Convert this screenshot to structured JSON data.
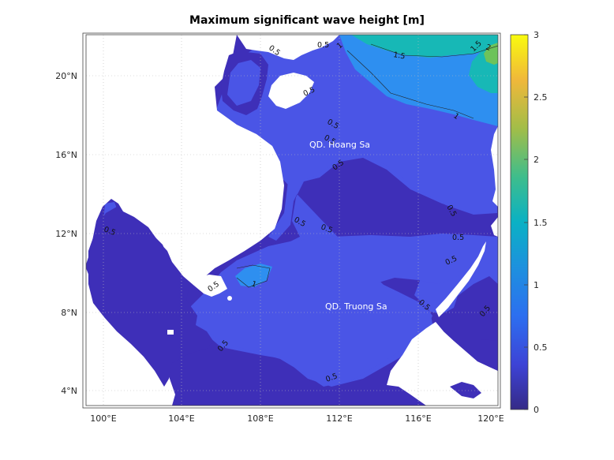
{
  "title": "Maximum significant wave height [m]",
  "map": {
    "lon_ticks": [
      "100°E",
      "104°E",
      "108°E",
      "112°E",
      "116°E",
      "120°E"
    ],
    "lat_ticks": [
      "4°N",
      "8°N",
      "12°N",
      "16°N",
      "20°N"
    ],
    "place_labels": [
      "QD. Hoang Sa",
      "QD. Truong Sa"
    ],
    "contour_labels": [
      "0.5",
      "0.5",
      "1",
      "1.5",
      "1.5",
      "2",
      "0.5",
      "0.5",
      "0.5",
      "1",
      "0.5",
      "0.5",
      "0.5",
      "0.5",
      "0.5",
      "0.5",
      "0.5",
      "1",
      "0.5",
      "0.5",
      "0.5",
      "0.5",
      "0.5"
    ]
  },
  "colorbar": {
    "ticks": [
      "0",
      "0.5",
      "1",
      "1.5",
      "2",
      "2.5",
      "3"
    ],
    "range": [
      0,
      3
    ]
  },
  "colors": {
    "land": "#ffffff",
    "level_0": "#3e2fb8",
    "level_05": "#4a55e6",
    "level_1": "#2e8ff0",
    "level_15": "#17b8b6",
    "level_2": "#6dc35a"
  }
}
